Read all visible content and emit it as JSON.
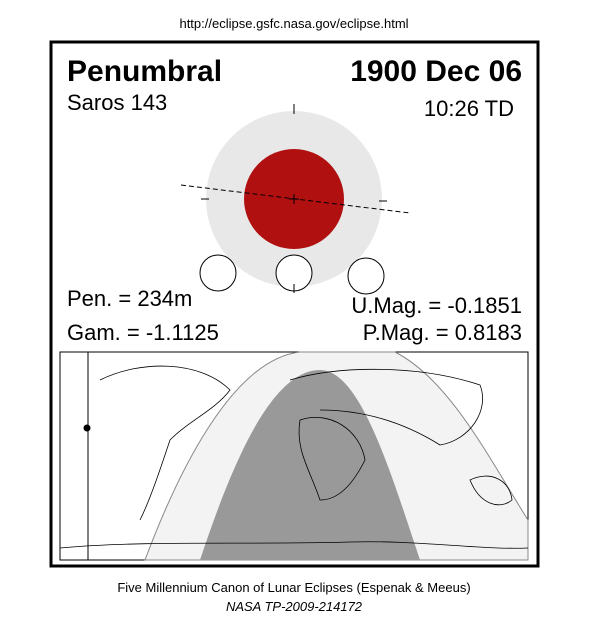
{
  "header": {
    "url": "http://eclipse.gsfc.nasa.gov/eclipse.html"
  },
  "eclipse": {
    "type": "Penumbral",
    "date": "1900 Dec 06",
    "saros": "Saros 143",
    "time": "10:26 TD",
    "pen": "Pen. = 234m",
    "gam": "Gam. = -1.1125",
    "umag": "U.Mag. = -0.1851",
    "pmag": "P.Mag. = 0.8183"
  },
  "footer": {
    "line1": "Five Millennium Canon of Lunar Eclipses (Espenak & Meeus)",
    "line2": "NASA TP-2009-214172"
  }
}
